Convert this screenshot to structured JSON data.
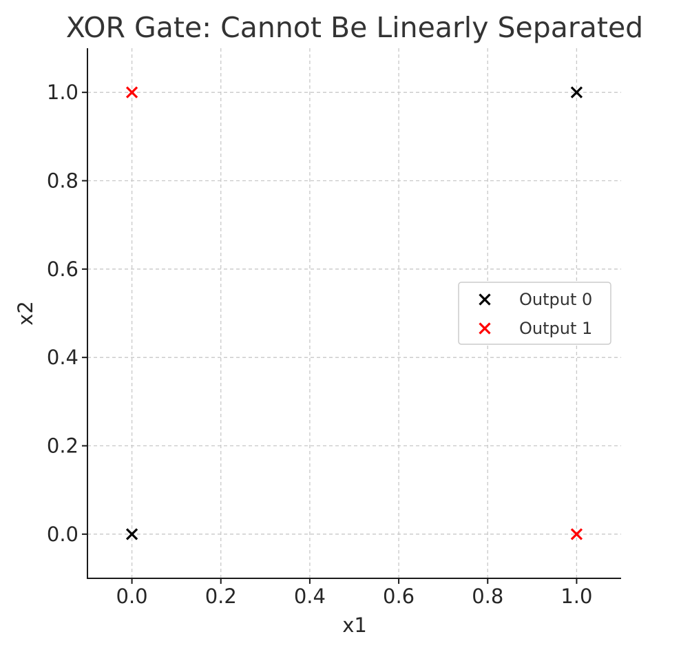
{
  "chart_data": {
    "type": "scatter",
    "title": "XOR Gate: Cannot Be Linearly Separated",
    "xlabel": "x1",
    "ylabel": "x2",
    "xlim": [
      -0.1,
      1.1
    ],
    "ylim": [
      -0.1,
      1.1
    ],
    "x_ticks": [
      "0.0",
      "0.2",
      "0.4",
      "0.6",
      "0.8",
      "1.0"
    ],
    "y_ticks": [
      "0.0",
      "0.2",
      "0.4",
      "0.6",
      "0.8",
      "1.0"
    ],
    "grid": true,
    "legend_position": "center-right",
    "series": [
      {
        "name": "Output 0",
        "color": "#000000",
        "marker": "x",
        "points": [
          [
            0,
            0
          ],
          [
            1,
            1
          ]
        ]
      },
      {
        "name": "Output 1",
        "color": "#ff0000",
        "marker": "x",
        "points": [
          [
            0,
            1
          ],
          [
            1,
            0
          ]
        ]
      }
    ]
  }
}
